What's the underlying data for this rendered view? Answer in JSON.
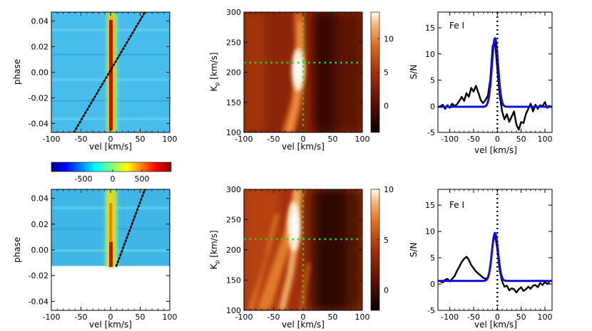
{
  "chart_data": [
    {
      "id": "phase_map_top",
      "type": "heatmap",
      "description_from_image": "cross-correlation map vs velocity and orbital phase, with dotted planet trail",
      "xlabel": "vel [km/s]",
      "ylabel": "phase",
      "xlim": [
        -100,
        100
      ],
      "ylim": [
        -0.047,
        0.047
      ],
      "xticks": [
        -100,
        -50,
        0,
        50,
        100
      ],
      "yticks": [
        -0.04,
        -0.02,
        0.0,
        0.02,
        0.04
      ],
      "ytick_labels": [
        "-0.04",
        "-0.02",
        "0.00",
        "0.02",
        "0.04"
      ],
      "stellar_trail_vel": 0,
      "planet_trail": {
        "vel_at_min_phase": -62,
        "vel_at_max_phase": 58,
        "style": "dotted",
        "color": "#000000"
      },
      "data_phase_range": [
        -0.047,
        0.047
      ]
    },
    {
      "id": "kp_map_top",
      "type": "heatmap",
      "xlabel": "vel [km/s]",
      "ylabel": "K_p [km/s]",
      "xlim": [
        -100,
        100
      ],
      "ylim": [
        100,
        300
      ],
      "xticks": [
        -100,
        -50,
        0,
        50,
        100
      ],
      "yticks": [
        100,
        150,
        200,
        250,
        300
      ],
      "peak": {
        "vel": -5,
        "kp": 215
      },
      "crosshair": {
        "vel": 0,
        "kp": 217,
        "color": "#22dd22",
        "style": "dotted"
      },
      "colorbar": {
        "ticks": [
          0,
          5,
          10
        ],
        "range": [
          -4,
          14
        ]
      }
    },
    {
      "id": "snr_top",
      "type": "line",
      "label": "Fe I",
      "xlabel": "vel [km/s]",
      "ylabel": "S/N",
      "xlim": [
        -125,
        115
      ],
      "ylim": [
        -5,
        18
      ],
      "xticks": [
        -100,
        -50,
        0,
        50,
        100
      ],
      "yticks": [
        -5,
        0,
        5,
        10,
        15
      ],
      "vline_x": 0,
      "series": [
        {
          "name": "data",
          "color": "#000000",
          "x": [
            -120,
            -115,
            -110,
            -105,
            -100,
            -95,
            -90,
            -85,
            -80,
            -75,
            -70,
            -65,
            -60,
            -55,
            -50,
            -45,
            -40,
            -35,
            -30,
            -25,
            -20,
            -15,
            -10,
            -5,
            0,
            5,
            10,
            15,
            20,
            25,
            30,
            35,
            40,
            45,
            50,
            55,
            60,
            65,
            70,
            75,
            80,
            85,
            90,
            95,
            100,
            105,
            110
          ],
          "y": [
            0,
            0.3,
            -0.5,
            0.2,
            -0.3,
            0.5,
            0,
            0.4,
            1.0,
            1.8,
            1.0,
            2.5,
            1.8,
            3.5,
            2.8,
            3.9,
            2.6,
            1.2,
            0.6,
            1.2,
            2.0,
            5.0,
            11.5,
            12.5,
            7.0,
            2.0,
            -1.0,
            -2.5,
            -1.5,
            -3.0,
            -2.0,
            -1.0,
            -3.5,
            -4.5,
            -3.0,
            -3.2,
            -1.5,
            -0.5,
            0.5,
            -1.0,
            0.3,
            -0.5,
            0.2,
            0,
            0.8,
            -0.3,
            0.2
          ]
        },
        {
          "name": "fit",
          "color": "#1010dd",
          "gaussian": {
            "amp": 13.1,
            "center": -5,
            "sigma": 6.5,
            "offset": -0.1
          }
        }
      ]
    },
    {
      "id": "phase_map_bottom",
      "type": "heatmap",
      "xlabel": "vel [km/s]",
      "ylabel": "phase",
      "xlim": [
        -100,
        100
      ],
      "ylim": [
        -0.047,
        0.047
      ],
      "xticks": [
        -100,
        -50,
        0,
        50,
        100
      ],
      "yticks": [
        -0.04,
        -0.02,
        0.0,
        0.02,
        0.04
      ],
      "ytick_labels": [
        "-0.04",
        "-0.02",
        "0.00",
        "0.02",
        "0.04"
      ],
      "stellar_trail_vel": 0,
      "planet_trail": {
        "vel_at_min_phase": -18,
        "vel_at_max_phase": 58,
        "style": "dotted",
        "color": "#000000"
      },
      "data_phase_range": [
        -0.0125,
        0.047
      ]
    },
    {
      "id": "kp_map_bottom",
      "type": "heatmap",
      "xlabel": "vel [km/s]",
      "ylabel": "K_p [km/s]",
      "xlim": [
        -100,
        100
      ],
      "ylim": [
        100,
        300
      ],
      "xticks": [
        -100,
        -50,
        0,
        50,
        100
      ],
      "yticks": [
        100,
        150,
        200,
        250,
        300
      ],
      "peak": {
        "vel": -10,
        "kp": 235
      },
      "crosshair": {
        "vel": 0,
        "kp": 217,
        "color": "#22dd22",
        "style": "dotted"
      },
      "colorbar": {
        "ticks": [
          0,
          5,
          10
        ],
        "range": [
          -2,
          10
        ]
      }
    },
    {
      "id": "snr_bottom",
      "type": "line",
      "label": "Fe I",
      "xlabel": "vel [km/s]",
      "ylabel": "S/N",
      "xlim": [
        -125,
        115
      ],
      "ylim": [
        -5,
        18
      ],
      "xticks": [
        -100,
        -50,
        0,
        50,
        100
      ],
      "yticks": [
        -5,
        0,
        5,
        10,
        15
      ],
      "vline_x": 0,
      "series": [
        {
          "name": "data",
          "color": "#000000",
          "x": [
            -120,
            -115,
            -110,
            -105,
            -100,
            -95,
            -90,
            -85,
            -80,
            -75,
            -70,
            -65,
            -60,
            -55,
            -50,
            -45,
            -40,
            -35,
            -30,
            -25,
            -20,
            -15,
            -10,
            -5,
            0,
            5,
            10,
            15,
            20,
            25,
            30,
            35,
            40,
            45,
            50,
            55,
            60,
            65,
            70,
            75,
            80,
            85,
            90,
            95,
            100,
            105,
            110
          ],
          "y": [
            0.5,
            0.3,
            0.8,
            1.0,
            0.5,
            1.0,
            1.5,
            2.5,
            3.3,
            4.2,
            4.8,
            5.2,
            4.6,
            3.6,
            3.0,
            2.4,
            2.0,
            1.6,
            1.2,
            1.0,
            1.2,
            3.0,
            7.5,
            9.6,
            6.5,
            2.5,
            0.5,
            -0.5,
            -0.3,
            -1.2,
            -0.8,
            -1.0,
            -1.6,
            -1.0,
            -0.6,
            -1.3,
            -1.0,
            -0.5,
            -0.9,
            -0.3,
            -0.2,
            -0.6,
            0.2,
            -0.2,
            0.4,
            0.0,
            0.3
          ]
        },
        {
          "name": "fit",
          "color": "#1010dd",
          "gaussian": {
            "amp": 9.1,
            "center": -5,
            "sigma": 6.5,
            "offset": 0.6
          }
        }
      ]
    },
    {
      "id": "phase_colorbar",
      "type": "colorbar",
      "ticks": [
        -500,
        0,
        500
      ],
      "range": [
        -1050,
        1000
      ],
      "colormap": "jet"
    }
  ]
}
